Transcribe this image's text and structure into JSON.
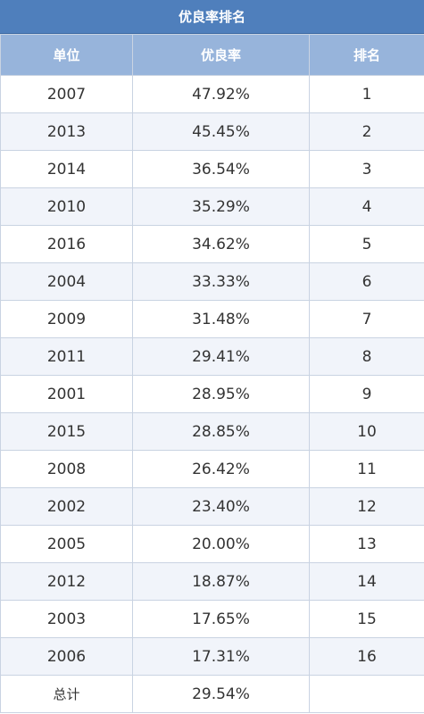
{
  "table": {
    "title": "优良率排名",
    "header": [
      "单位",
      "优良率",
      "排名"
    ],
    "rows": [
      [
        "2007",
        "47.92%",
        "1"
      ],
      [
        "2013",
        "45.45%",
        "2"
      ],
      [
        "2014",
        "36.54%",
        "3"
      ],
      [
        "2010",
        "35.29%",
        "4"
      ],
      [
        "2016",
        "34.62%",
        "5"
      ],
      [
        "2004",
        "33.33%",
        "6"
      ],
      [
        "2009",
        "31.48%",
        "7"
      ],
      [
        "2011",
        "29.41%",
        "8"
      ],
      [
        "2001",
        "28.95%",
        "9"
      ],
      [
        "2015",
        "28.85%",
        "10"
      ],
      [
        "2008",
        "26.42%",
        "11"
      ],
      [
        "2002",
        "23.40%",
        "12"
      ],
      [
        "2005",
        "20.00%",
        "13"
      ],
      [
        "2012",
        "18.87%",
        "14"
      ],
      [
        "2003",
        "17.65%",
        "15"
      ],
      [
        "2006",
        "17.31%",
        "16"
      ],
      [
        "总计",
        "29.54%"
      ]
    ]
  }
}
